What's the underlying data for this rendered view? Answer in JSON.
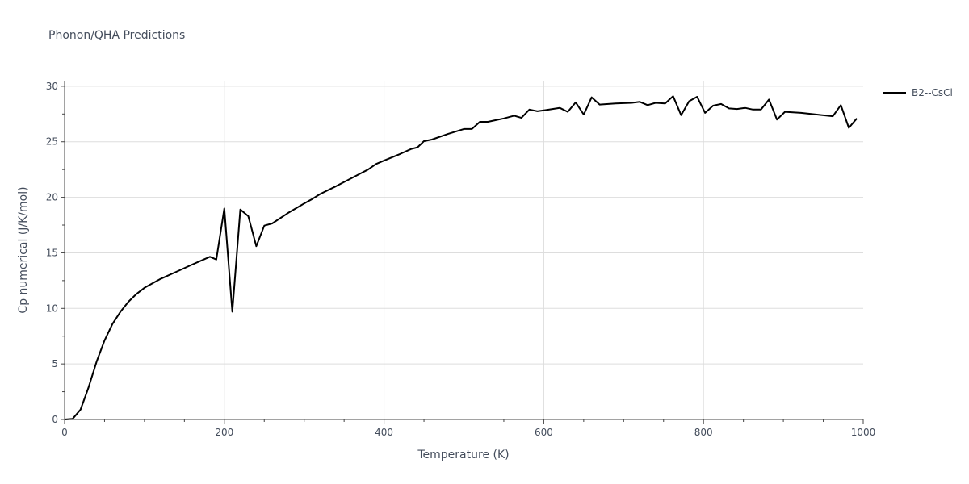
{
  "chart_data": {
    "type": "line",
    "title": "Phonon/QHA Predictions",
    "xlabel": "Temperature (K)",
    "ylabel": "Cp numerical (J/K/mol)",
    "xlim": [
      0,
      1000
    ],
    "ylim": [
      0,
      30.5
    ],
    "xticks": [
      0,
      200,
      400,
      600,
      800,
      1000
    ],
    "yticks": [
      0,
      5,
      10,
      15,
      20,
      25,
      30
    ],
    "grid": true,
    "legend_position": "top-right",
    "series": [
      {
        "name": "B2--CsCl",
        "color": "#000000",
        "x": [
          0,
          10,
          20,
          30,
          40,
          50,
          60,
          70,
          80,
          90,
          100,
          120,
          140,
          160,
          182,
          190,
          200,
          210,
          220,
          230,
          240,
          250,
          260,
          280,
          300,
          310,
          320,
          340,
          360,
          372,
          380,
          390,
          400,
          420,
          434,
          442,
          450,
          460,
          480,
          500,
          510,
          520,
          530,
          540,
          550,
          563,
          572,
          582,
          592,
          602,
          620,
          630,
          640,
          650,
          660,
          670,
          690,
          710,
          720,
          730,
          740,
          752,
          762,
          772,
          782,
          792,
          802,
          812,
          822,
          832,
          842,
          852,
          862,
          872,
          882,
          892,
          902,
          922,
          942,
          962,
          972,
          982,
          992
        ],
        "y": [
          0,
          0.05,
          0.9,
          2.9,
          5.2,
          7.1,
          8.6,
          9.7,
          10.6,
          11.3,
          11.85,
          12.65,
          13.3,
          13.95,
          14.65,
          14.4,
          19.0,
          9.7,
          18.9,
          18.3,
          15.6,
          17.45,
          17.65,
          18.6,
          19.45,
          19.85,
          20.3,
          21.0,
          21.75,
          22.2,
          22.5,
          23.0,
          23.3,
          23.9,
          24.35,
          24.5,
          25.05,
          25.2,
          25.7,
          26.15,
          26.15,
          26.8,
          26.8,
          26.95,
          27.1,
          27.35,
          27.15,
          27.9,
          27.75,
          27.85,
          28.05,
          27.7,
          28.55,
          27.45,
          29.0,
          28.35,
          28.45,
          28.5,
          28.6,
          28.3,
          28.5,
          28.45,
          29.1,
          27.4,
          28.65,
          29.05,
          27.6,
          28.25,
          28.4,
          28.0,
          27.95,
          28.05,
          27.9,
          27.9,
          28.8,
          27.0,
          27.7,
          27.6,
          27.45,
          27.3,
          28.3,
          26.25,
          27.1
        ]
      }
    ]
  }
}
